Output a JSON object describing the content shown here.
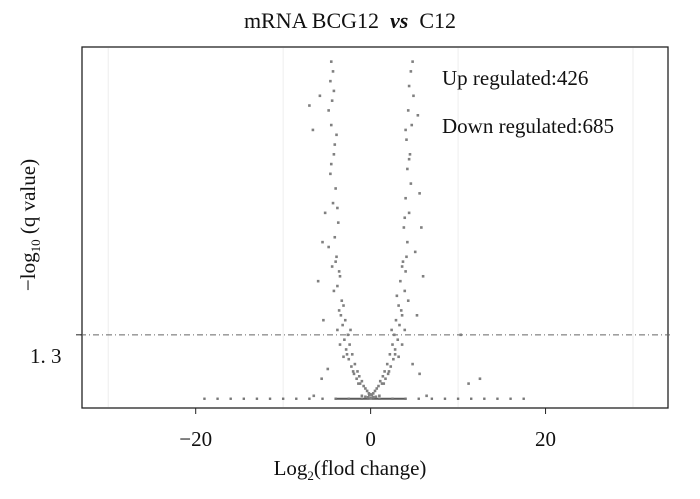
{
  "chart_data": {
    "type": "scatter",
    "title_parts": [
      "mRNA BCG12",
      "vs",
      "C12"
    ],
    "xlabel_parts": [
      "Log",
      "2",
      "(flod change)"
    ],
    "ylabel_parts": [
      "−log",
      "10",
      "(q value)"
    ],
    "xlim": [
      -33,
      34
    ],
    "ylim": [
      -0.2,
      7.2
    ],
    "xticks": [
      -20,
      0,
      20
    ],
    "xtick_labels": [
      "−20",
      "0",
      "20"
    ],
    "ytick_label": "1. 3",
    "threshold_y": 1.3,
    "annotations": [
      {
        "label": "Up regulated:",
        "count": "426"
      },
      {
        "label": "Down regulated:",
        "count": "685"
      }
    ],
    "series": [
      {
        "color": "#808080",
        "points": [
          [
            -4.5,
            6.9
          ],
          [
            -4.3,
            6.7
          ],
          [
            -4.6,
            6.5
          ],
          [
            -4.2,
            6.3
          ],
          [
            -4.4,
            6.1
          ],
          [
            -4.8,
            5.9
          ],
          [
            -4.5,
            5.6
          ],
          [
            -3.9,
            5.4
          ],
          [
            -4.2,
            5.0
          ],
          [
            -4.6,
            4.6
          ],
          [
            -4.0,
            4.3
          ],
          [
            -4.3,
            4.0
          ],
          [
            -5.2,
            3.8
          ],
          [
            -3.7,
            3.6
          ],
          [
            -4.1,
            3.3
          ],
          [
            -4.8,
            3.1
          ],
          [
            -3.9,
            2.9
          ],
          [
            -4.4,
            2.7
          ],
          [
            -3.5,
            2.5
          ],
          [
            -3.8,
            2.3
          ],
          [
            -4.2,
            2.2
          ],
          [
            -3.3,
            2.0
          ],
          [
            -3.6,
            1.8
          ],
          [
            -2.9,
            1.6
          ],
          [
            -3.2,
            1.5
          ],
          [
            -3.8,
            1.4
          ],
          [
            -2.6,
            1.3
          ],
          [
            -3.0,
            1.2
          ],
          [
            -2.4,
            1.1
          ],
          [
            -2.8,
            1.0
          ],
          [
            -2.1,
            0.9
          ],
          [
            -2.5,
            0.8
          ],
          [
            -1.8,
            0.7
          ],
          [
            -2.2,
            0.65
          ],
          [
            -1.5,
            0.55
          ],
          [
            -1.9,
            0.5
          ],
          [
            -1.3,
            0.45
          ],
          [
            -1.6,
            0.4
          ],
          [
            -1.0,
            0.35
          ],
          [
            -1.2,
            0.3
          ],
          [
            -0.8,
            0.25
          ],
          [
            -0.6,
            0.2
          ],
          [
            -0.4,
            0.15
          ],
          [
            -0.2,
            0.1
          ],
          [
            -1.4,
            0.3
          ],
          [
            -2.0,
            0.55
          ],
          [
            -2.7,
            0.9
          ],
          [
            -3.4,
            1.7
          ],
          [
            -3.1,
            1.9
          ],
          [
            -3.6,
            2.6
          ],
          [
            -4.0,
            2.8
          ],
          [
            -3.8,
            3.9
          ],
          [
            -4.5,
            4.8
          ],
          [
            -4.1,
            5.2
          ],
          [
            -7.0,
            6.0
          ],
          [
            -5.8,
            6.2
          ],
          [
            -6.6,
            5.5
          ],
          [
            -5.5,
            3.2
          ],
          [
            -6.0,
            2.4
          ],
          [
            -5.4,
            1.6
          ],
          [
            -4.9,
            0.6
          ],
          [
            -5.6,
            0.4
          ],
          [
            -6.5,
            0.05
          ],
          [
            -3.1,
            0.85
          ],
          [
            -2.3,
            1.4
          ],
          [
            -3.5,
            1.1
          ],
          [
            4.8,
            6.9
          ],
          [
            4.6,
            6.7
          ],
          [
            4.4,
            6.4
          ],
          [
            4.9,
            6.2
          ],
          [
            4.3,
            5.9
          ],
          [
            4.7,
            5.6
          ],
          [
            4.1,
            5.3
          ],
          [
            4.5,
            5.0
          ],
          [
            4.2,
            4.7
          ],
          [
            4.6,
            4.4
          ],
          [
            4.0,
            4.1
          ],
          [
            4.4,
            3.8
          ],
          [
            5.6,
            4.2
          ],
          [
            3.8,
            3.5
          ],
          [
            4.2,
            3.2
          ],
          [
            5.1,
            3.0
          ],
          [
            3.7,
            2.8
          ],
          [
            4.0,
            2.6
          ],
          [
            3.4,
            2.4
          ],
          [
            3.9,
            2.2
          ],
          [
            4.3,
            2.0
          ],
          [
            3.2,
            1.9
          ],
          [
            3.6,
            1.7
          ],
          [
            2.9,
            1.6
          ],
          [
            3.3,
            1.5
          ],
          [
            3.9,
            1.4
          ],
          [
            2.7,
            1.3
          ],
          [
            3.1,
            1.2
          ],
          [
            2.5,
            1.1
          ],
          [
            2.8,
            1.0
          ],
          [
            2.2,
            0.9
          ],
          [
            2.6,
            0.8
          ],
          [
            1.9,
            0.7
          ],
          [
            2.3,
            0.65
          ],
          [
            1.6,
            0.55
          ],
          [
            2.0,
            0.5
          ],
          [
            1.4,
            0.45
          ],
          [
            1.7,
            0.4
          ],
          [
            1.1,
            0.35
          ],
          [
            1.3,
            0.3
          ],
          [
            0.9,
            0.25
          ],
          [
            0.7,
            0.2
          ],
          [
            0.5,
            0.15
          ],
          [
            0.3,
            0.1
          ],
          [
            1.5,
            0.3
          ],
          [
            2.1,
            0.55
          ],
          [
            2.8,
            0.9
          ],
          [
            3.5,
            1.8
          ],
          [
            3.0,
            2.1
          ],
          [
            3.6,
            2.7
          ],
          [
            4.1,
            2.9
          ],
          [
            3.9,
            3.7
          ],
          [
            4.4,
            4.9
          ],
          [
            4.0,
            5.5
          ],
          [
            5.4,
            5.8
          ],
          [
            5.8,
            3.5
          ],
          [
            6.0,
            2.5
          ],
          [
            5.3,
            1.7
          ],
          [
            4.8,
            0.7
          ],
          [
            5.6,
            0.5
          ],
          [
            6.4,
            0.05
          ],
          [
            3.2,
            0.85
          ],
          [
            2.4,
            1.4
          ],
          [
            3.6,
            1.1
          ],
          [
            11.2,
            0.3
          ],
          [
            12.5,
            0.4
          ],
          [
            10.3,
            1.3
          ],
          [
            0,
            0
          ],
          [
            0.3,
            0.02
          ],
          [
            -0.3,
            0.02
          ],
          [
            0.6,
            0.03
          ],
          [
            -0.6,
            0.03
          ],
          [
            1.0,
            0.05
          ],
          [
            -1.0,
            0.05
          ],
          [
            0.15,
            0.06
          ],
          [
            -0.15,
            0.06
          ],
          [
            0,
            0.08
          ]
        ]
      }
    ],
    "baseline_points": [
      -19,
      -17.5,
      -16,
      -14.5,
      -13,
      -11.5,
      -10,
      -8.5,
      -7,
      -5.5,
      -4,
      -2.5,
      -1,
      1,
      2.5,
      4,
      5.5,
      7,
      8.5,
      10,
      11.5,
      13,
      14.5,
      16,
      17.5
    ]
  }
}
